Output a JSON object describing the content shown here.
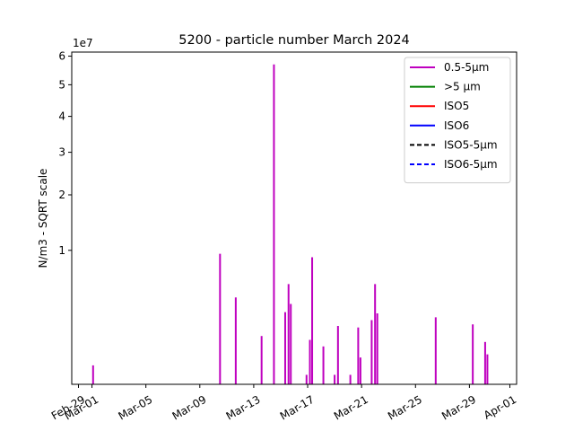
{
  "chart_data": {
    "type": "line",
    "title": "5200 - particle number March 2024",
    "ylabel": "N/m3 - SQRT scale",
    "xlabel": "",
    "y_scale": "sqrt",
    "y_offset_label": "1e7",
    "ylim": [
      0,
      61500000
    ],
    "xlim": [
      "2024-02-28T12:00",
      "2024-04-01T12:00"
    ],
    "x_ticks": [
      {
        "date": "2024-02-29",
        "label": "Feb-29"
      },
      {
        "date": "2024-03-01",
        "label": "Mar-01"
      },
      {
        "date": "2024-03-05",
        "label": "Mar-05"
      },
      {
        "date": "2024-03-09",
        "label": "Mar-09"
      },
      {
        "date": "2024-03-13",
        "label": "Mar-13"
      },
      {
        "date": "2024-03-17",
        "label": "Mar-17"
      },
      {
        "date": "2024-03-21",
        "label": "Mar-21"
      },
      {
        "date": "2024-03-25",
        "label": "Mar-25"
      },
      {
        "date": "2024-03-29",
        "label": "Mar-29"
      },
      {
        "date": "2024-04-01",
        "label": "Apr-01"
      }
    ],
    "y_ticks": [
      {
        "value": 10000000,
        "label": "1"
      },
      {
        "value": 20000000,
        "label": "2"
      },
      {
        "value": 30000000,
        "label": "3"
      },
      {
        "value": 40000000,
        "label": "4"
      },
      {
        "value": 50000000,
        "label": "5"
      },
      {
        "value": 60000000,
        "label": "6"
      }
    ],
    "grid": false,
    "legend_position": "top-right",
    "series": [
      {
        "name": "0.5-5µm",
        "color": "#bf00bf",
        "style": "solid",
        "points": [
          [
            "2024-03-01T02:00",
            200000
          ],
          [
            "2024-03-10T12:00",
            9500000
          ],
          [
            "2024-03-11T16:00",
            4200000
          ],
          [
            "2024-03-13T14:00",
            1300000
          ],
          [
            "2024-03-14T12:00",
            57000000
          ],
          [
            "2024-03-15T08:00",
            2900000
          ],
          [
            "2024-03-15T14:00",
            5600000
          ],
          [
            "2024-03-15T18:00",
            3600000
          ],
          [
            "2024-03-16T22:00",
            50000
          ],
          [
            "2024-03-17T04:00",
            1100000
          ],
          [
            "2024-03-17T08:00",
            9000000
          ],
          [
            "2024-03-18T04:00",
            800000
          ],
          [
            "2024-03-19T00:00",
            50000
          ],
          [
            "2024-03-19T06:00",
            1900000
          ],
          [
            "2024-03-20T04:00",
            50000
          ],
          [
            "2024-03-20T18:00",
            1800000
          ],
          [
            "2024-03-20T22:00",
            400000
          ],
          [
            "2024-03-21T18:00",
            2300000
          ],
          [
            "2024-03-22T00:00",
            5600000
          ],
          [
            "2024-03-22T04:00",
            2800000
          ],
          [
            "2024-03-26T12:00",
            2500000
          ],
          [
            "2024-03-29T06:00",
            2000000
          ],
          [
            "2024-03-30T04:00",
            1000000
          ],
          [
            "2024-03-30T08:00",
            500000
          ]
        ]
      },
      {
        "name": ">5 µm",
        "color": "#008000",
        "style": "solid",
        "points": []
      },
      {
        "name": "ISO5",
        "color": "#ff0000",
        "style": "solid",
        "points": []
      },
      {
        "name": "ISO6",
        "color": "#0000ff",
        "style": "solid",
        "points": []
      },
      {
        "name": "ISO5-5µm",
        "color": "#000000",
        "style": "dashed",
        "points": []
      },
      {
        "name": "ISO6-5µm",
        "color": "#0000ff",
        "style": "dashed",
        "points": []
      }
    ]
  }
}
